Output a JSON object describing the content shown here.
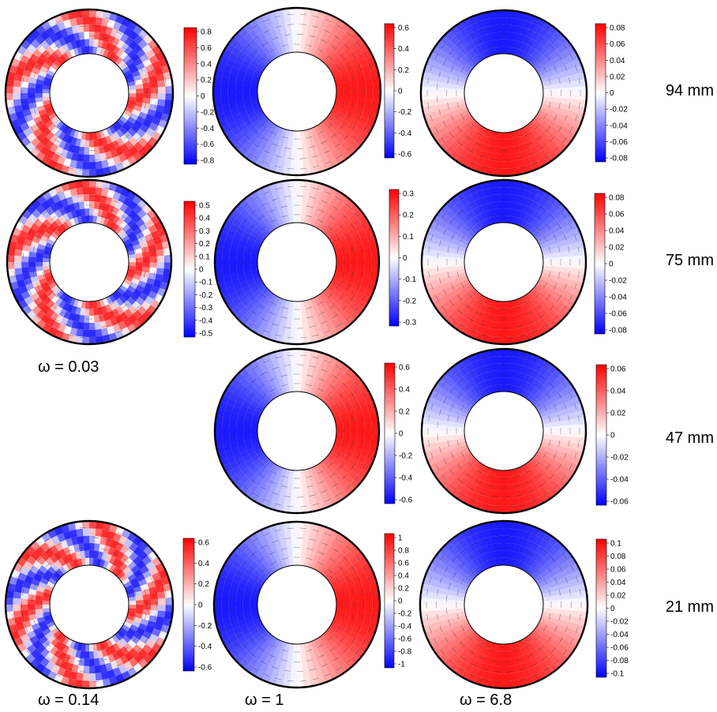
{
  "column_labels": [
    "ω = 0.03",
    "ω = 0.14",
    "ω = 1",
    "ω = 6.8"
  ],
  "row_labels": [
    "94 mm",
    "75 mm",
    "47 mm",
    "21 mm"
  ],
  "colors": {
    "positive": "#ff0000",
    "neutral": "#ffffff",
    "negative": "#0000ff",
    "ring": "#000000",
    "arrows": "#333333"
  },
  "panels": [
    {
      "id": "p-94-0.03",
      "row": "94 mm",
      "omega": "0.03",
      "pattern": "spiral",
      "mode": 5,
      "ticks": [
        "0.8",
        "0.6",
        "0.4",
        "0.2",
        "0",
        "-0.2",
        "-0.4",
        "-0.6",
        "-0.8"
      ]
    },
    {
      "id": "p-94-1",
      "row": "94 mm",
      "omega": "1",
      "pattern": "dipole-horizontal",
      "ticks": [
        "0.6",
        "0.4",
        "0.2",
        "0",
        "-0.2",
        "-0.4",
        "-0.6"
      ]
    },
    {
      "id": "p-94-6.8",
      "row": "94 mm",
      "omega": "6.8",
      "pattern": "dipole-vertical",
      "ticks": [
        "0.08",
        "0.06",
        "0.04",
        "0.02",
        "0",
        "-0.02",
        "-0.04",
        "-0.06",
        "-0.08"
      ]
    },
    {
      "id": "p-75-0.03",
      "row": "75 mm",
      "omega": "0.03",
      "pattern": "spiral",
      "mode": 5,
      "ticks": [
        "0.5",
        "0.4",
        "0.3",
        "0.2",
        "0.1",
        "0",
        "-0.1",
        "-0.2",
        "-0.3",
        "-0.4",
        "-0.5"
      ]
    },
    {
      "id": "p-75-1",
      "row": "75 mm",
      "omega": "1",
      "pattern": "dipole-horizontal",
      "ticks": [
        "0.3",
        "0.2",
        "0.1",
        "0",
        "-0.1",
        "-0.2",
        "-0.3"
      ]
    },
    {
      "id": "p-75-6.8",
      "row": "75 mm",
      "omega": "6.8",
      "pattern": "dipole-vertical",
      "ticks": [
        "0.08",
        "0.06",
        "0.04",
        "0.02",
        "0",
        "-0.02",
        "-0.04",
        "-0.06",
        "-0.08"
      ]
    },
    {
      "id": "p-47-1",
      "row": "47 mm",
      "omega": "1",
      "pattern": "dipole-horizontal",
      "ticks": [
        "0.6",
        "0.4",
        "0.2",
        "0",
        "-0.2",
        "-0.4",
        "-0.6"
      ]
    },
    {
      "id": "p-47-6.8",
      "row": "47 mm",
      "omega": "6.8",
      "pattern": "dipole-vertical",
      "ticks": [
        "0.06",
        "0.04",
        "0.02",
        "0",
        "-0.02",
        "-0.04",
        "-0.06"
      ]
    },
    {
      "id": "p-21-0.14",
      "row": "21 mm",
      "omega": "0.14",
      "pattern": "spiral",
      "mode": 6,
      "ticks": [
        "0.6",
        "0.4",
        "0.2",
        "0",
        "-0.2",
        "-0.4",
        "-0.6"
      ]
    },
    {
      "id": "p-21-1",
      "row": "21 mm",
      "omega": "1",
      "pattern": "dipole-horizontal",
      "ticks": [
        "1",
        "0.8",
        "0.6",
        "0.4",
        "0.2",
        "0",
        "-0.2",
        "-0.4",
        "-0.6",
        "-0.8",
        "-1"
      ]
    },
    {
      "id": "p-21-6.8",
      "row": "21 mm",
      "omega": "6.8",
      "pattern": "dipole-vertical",
      "ticks": [
        "0.1",
        "0.08",
        "0.06",
        "0.04",
        "0.02",
        "0",
        "-0.02",
        "-0.04",
        "-0.06",
        "-0.08",
        "-0.1"
      ]
    }
  ]
}
